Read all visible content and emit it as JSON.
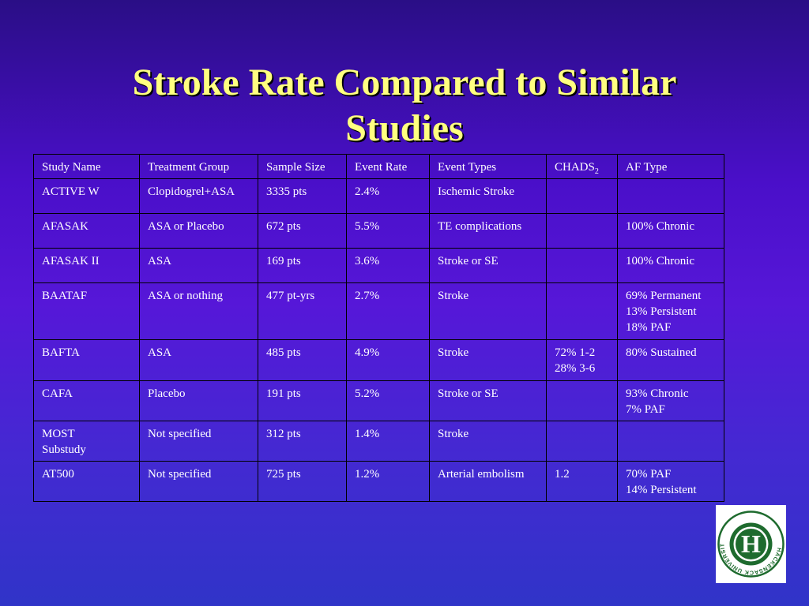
{
  "slide": {
    "title_line1": "Stroke Rate Compared to Similar",
    "title_line2": "Studies",
    "colors": {
      "title": "#ffff80",
      "background_top": "#2a0e86",
      "background_bottom": "#3034c8",
      "table_text": "#ffffff",
      "logo_green": "#1e6b2e"
    }
  },
  "table": {
    "headers": {
      "study_name": "Study Name",
      "treatment_group": "Treatment Group",
      "sample_size": "Sample Size",
      "event_rate": "Event Rate",
      "event_types": "Event Types",
      "chads": "CHADS",
      "chads_sub": "2",
      "af_type": "AF Type"
    },
    "rows": [
      {
        "study_name": [
          "ACTIVE W"
        ],
        "treatment_group": "Clopidogrel+ASA",
        "sample_size": "3335 pts",
        "event_rate": "2.4%",
        "event_types": "Ischemic Stroke",
        "chads": [],
        "af_type": []
      },
      {
        "study_name": [
          "AFASAK"
        ],
        "treatment_group": "ASA or Placebo",
        "sample_size": "672 pts",
        "event_rate": "5.5%",
        "event_types": "TE complications",
        "chads": [],
        "af_type": [
          "100% Chronic"
        ]
      },
      {
        "study_name": [
          "AFASAK II"
        ],
        "treatment_group": "ASA",
        "sample_size": "169 pts",
        "event_rate": "3.6%",
        "event_types": "Stroke or SE",
        "chads": [],
        "af_type": [
          "100% Chronic"
        ]
      },
      {
        "study_name": [
          "BAATAF"
        ],
        "treatment_group": "ASA or nothing",
        "sample_size": "477 pt-yrs",
        "event_rate": "2.7%",
        "event_types": "Stroke",
        "chads": [],
        "af_type": [
          "69% Permanent",
          "13% Persistent",
          "18% PAF"
        ]
      },
      {
        "study_name": [
          "BAFTA"
        ],
        "treatment_group": "ASA",
        "sample_size": "485 pts",
        "event_rate": "4.9%",
        "event_types": "Stroke",
        "chads": [
          "72% 1-2",
          "28% 3-6"
        ],
        "af_type": [
          "80% Sustained"
        ]
      },
      {
        "study_name": [
          "CAFA"
        ],
        "treatment_group": "Placebo",
        "sample_size": "191 pts",
        "event_rate": "5.2%",
        "event_types": "Stroke or SE",
        "chads": [],
        "af_type": [
          "93% Chronic",
          "7% PAF"
        ]
      },
      {
        "study_name": [
          "MOST",
          "Substudy"
        ],
        "treatment_group": "Not specified",
        "sample_size": "312 pts",
        "event_rate": "1.4%",
        "event_types": "Stroke",
        "chads": [],
        "af_type": []
      },
      {
        "study_name": [
          "AT500"
        ],
        "treatment_group": "Not specified",
        "sample_size": "725 pts",
        "event_rate": "1.2%",
        "event_types": "Arterial embolism",
        "chads": [
          "1.2"
        ],
        "af_type": [
          "70% PAF",
          "14% Persistent"
        ]
      }
    ]
  },
  "logo": {
    "letter": "H",
    "ring_text": "HACKENSACK UNIVERSITY MEDICAL CENTER",
    "icon": "hackensack-logo-icon"
  }
}
